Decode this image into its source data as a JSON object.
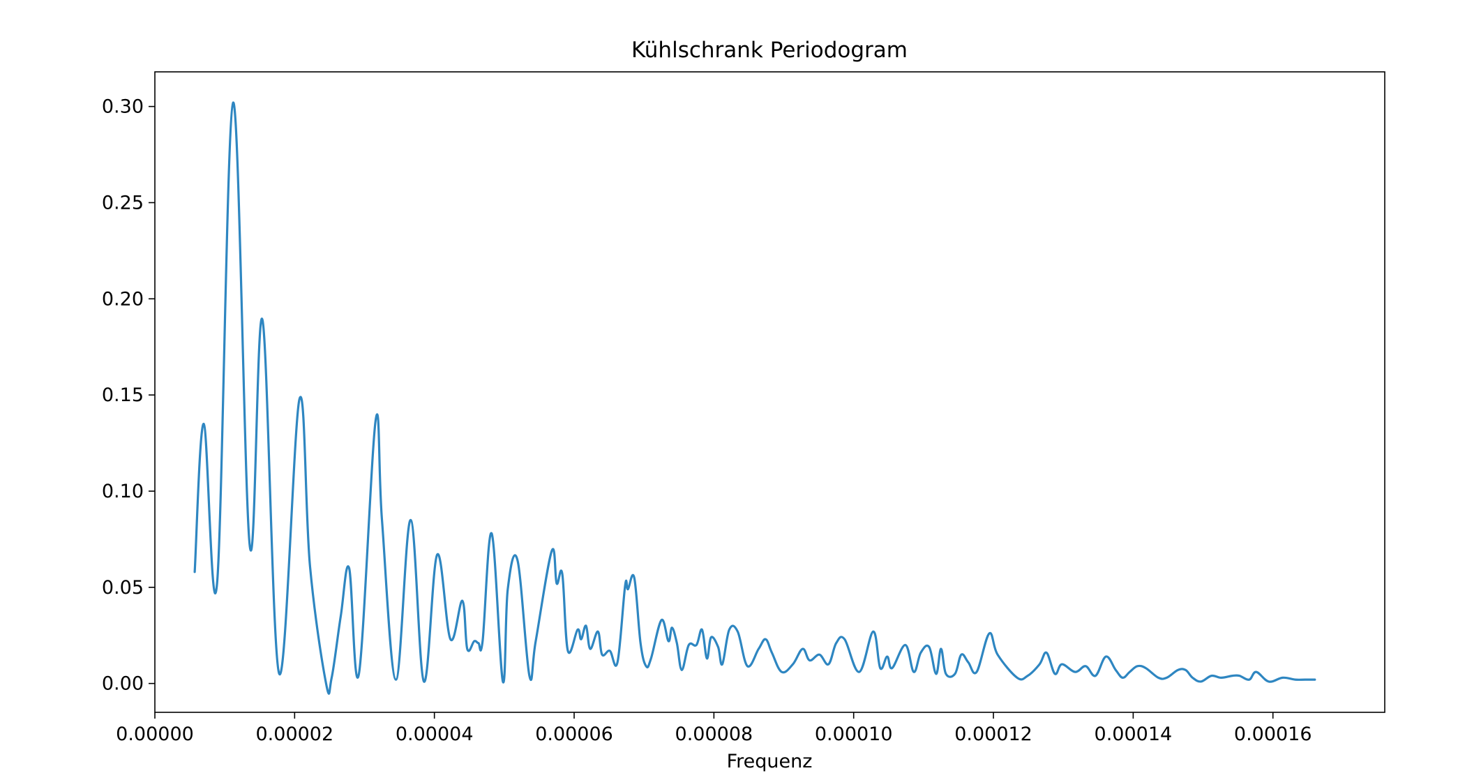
{
  "chart_data": {
    "type": "line",
    "title": "Kühlschrank Periodogram",
    "xlabel": "Frequenz",
    "ylabel": "",
    "xlim": [
      0.0,
      0.000176
    ],
    "ylim": [
      -0.015,
      0.318
    ],
    "x_ticks": [
      "0.00000",
      "0.00002",
      "0.00004",
      "0.00006",
      "0.00008",
      "0.00010",
      "0.00012",
      "0.00014",
      "0.00016"
    ],
    "x_tick_values": [
      0.0,
      2e-05,
      4e-05,
      6e-05,
      8e-05,
      0.0001,
      0.00012,
      0.00014,
      0.00016
    ],
    "y_ticks": [
      "0.00",
      "0.05",
      "0.10",
      "0.15",
      "0.20",
      "0.25",
      "0.30"
    ],
    "y_tick_values": [
      0.0,
      0.05,
      0.1,
      0.15,
      0.2,
      0.25,
      0.3
    ],
    "grid": false,
    "line_color": "#2e86c1",
    "series": [
      {
        "x": [
          5.7e-06,
          7e-06,
          8.9e-06,
          1.12e-05,
          1.36e-05,
          1.54e-05,
          1.78e-05,
          2.07e-05,
          2.22e-05,
          2.45e-05,
          2.53e-05,
          2.66e-05,
          2.78e-05,
          2.92e-05,
          3.16e-05,
          3.25e-05,
          3.45e-05,
          3.66e-05,
          3.85e-05,
          4.04e-05,
          4.23e-05,
          4.4e-05,
          4.47e-05,
          4.57e-05,
          4.63e-05,
          4.69e-05,
          4.82e-05,
          4.98e-05,
          5.05e-05,
          5.19e-05,
          5.36e-05,
          5.45e-05,
          5.68e-05,
          5.75e-05,
          5.83e-05,
          5.91e-05,
          6.05e-05,
          6.1e-05,
          6.17e-05,
          6.23e-05,
          6.34e-05,
          6.4e-05,
          6.51e-05,
          6.62e-05,
          6.73e-05,
          6.77e-05,
          6.86e-05,
          6.95e-05,
          7.03e-05,
          7.1e-05,
          7.25e-05,
          7.35e-05,
          7.4e-05,
          7.47e-05,
          7.54e-05,
          7.64e-05,
          7.75e-05,
          7.83e-05,
          7.9e-05,
          7.96e-05,
          8.06e-05,
          8.12e-05,
          8.22e-05,
          8.34e-05,
          8.48e-05,
          8.64e-05,
          8.74e-05,
          8.83e-05,
          8.97e-05,
          9.13e-05,
          9.27e-05,
          9.37e-05,
          9.51e-05,
          9.64e-05,
          9.75e-05,
          9.87e-05,
          0.0001008,
          0.0001028,
          0.0001038,
          0.0001048,
          0.0001055,
          0.0001074,
          0.0001086,
          0.0001096,
          0.0001108,
          0.0001118,
          0.0001125,
          0.0001132,
          0.0001145,
          0.0001154,
          0.0001164,
          0.0001176,
          0.0001194,
          0.0001206,
          0.0001234,
          0.0001249,
          0.0001266,
          0.0001276,
          0.0001288,
          0.0001298,
          0.0001317,
          0.0001332,
          0.0001346,
          0.0001361,
          0.0001375,
          0.0001385,
          0.0001395,
          0.0001406,
          0.0001418,
          0.0001436,
          0.0001448,
          0.0001464,
          0.0001475,
          0.0001485,
          0.0001497,
          0.0001512,
          0.0001526,
          0.0001542,
          0.0001552,
          0.0001566,
          0.0001576,
          0.0001594,
          0.0001614,
          0.0001632,
          0.0001646,
          0.000166
        ],
        "y": [
          0.058,
          0.135,
          0.052,
          0.302,
          0.071,
          0.189,
          0.005,
          0.148,
          0.061,
          0.0,
          0.003,
          0.035,
          0.06,
          0.005,
          0.137,
          0.085,
          0.002,
          0.085,
          0.001,
          0.067,
          0.023,
          0.043,
          0.018,
          0.022,
          0.021,
          0.022,
          0.078,
          0.001,
          0.049,
          0.064,
          0.004,
          0.022,
          0.069,
          0.052,
          0.057,
          0.017,
          0.028,
          0.023,
          0.03,
          0.018,
          0.027,
          0.015,
          0.017,
          0.011,
          0.051,
          0.049,
          0.055,
          0.021,
          0.009,
          0.013,
          0.033,
          0.022,
          0.029,
          0.021,
          0.007,
          0.02,
          0.02,
          0.028,
          0.013,
          0.024,
          0.019,
          0.01,
          0.028,
          0.027,
          0.009,
          0.018,
          0.023,
          0.016,
          0.006,
          0.01,
          0.018,
          0.012,
          0.015,
          0.01,
          0.021,
          0.023,
          0.006,
          0.027,
          0.008,
          0.014,
          0.008,
          0.02,
          0.006,
          0.016,
          0.019,
          0.005,
          0.018,
          0.005,
          0.005,
          0.015,
          0.011,
          0.006,
          0.026,
          0.015,
          0.003,
          0.004,
          0.01,
          0.016,
          0.005,
          0.01,
          0.006,
          0.009,
          0.004,
          0.014,
          0.007,
          0.003,
          0.006,
          0.009,
          0.008,
          0.003,
          0.003,
          0.007,
          0.007,
          0.003,
          0.001,
          0.004,
          0.003,
          0.004,
          0.004,
          0.002,
          0.006,
          0.001,
          0.003,
          0.002,
          0.002,
          0.002
        ]
      }
    ]
  }
}
